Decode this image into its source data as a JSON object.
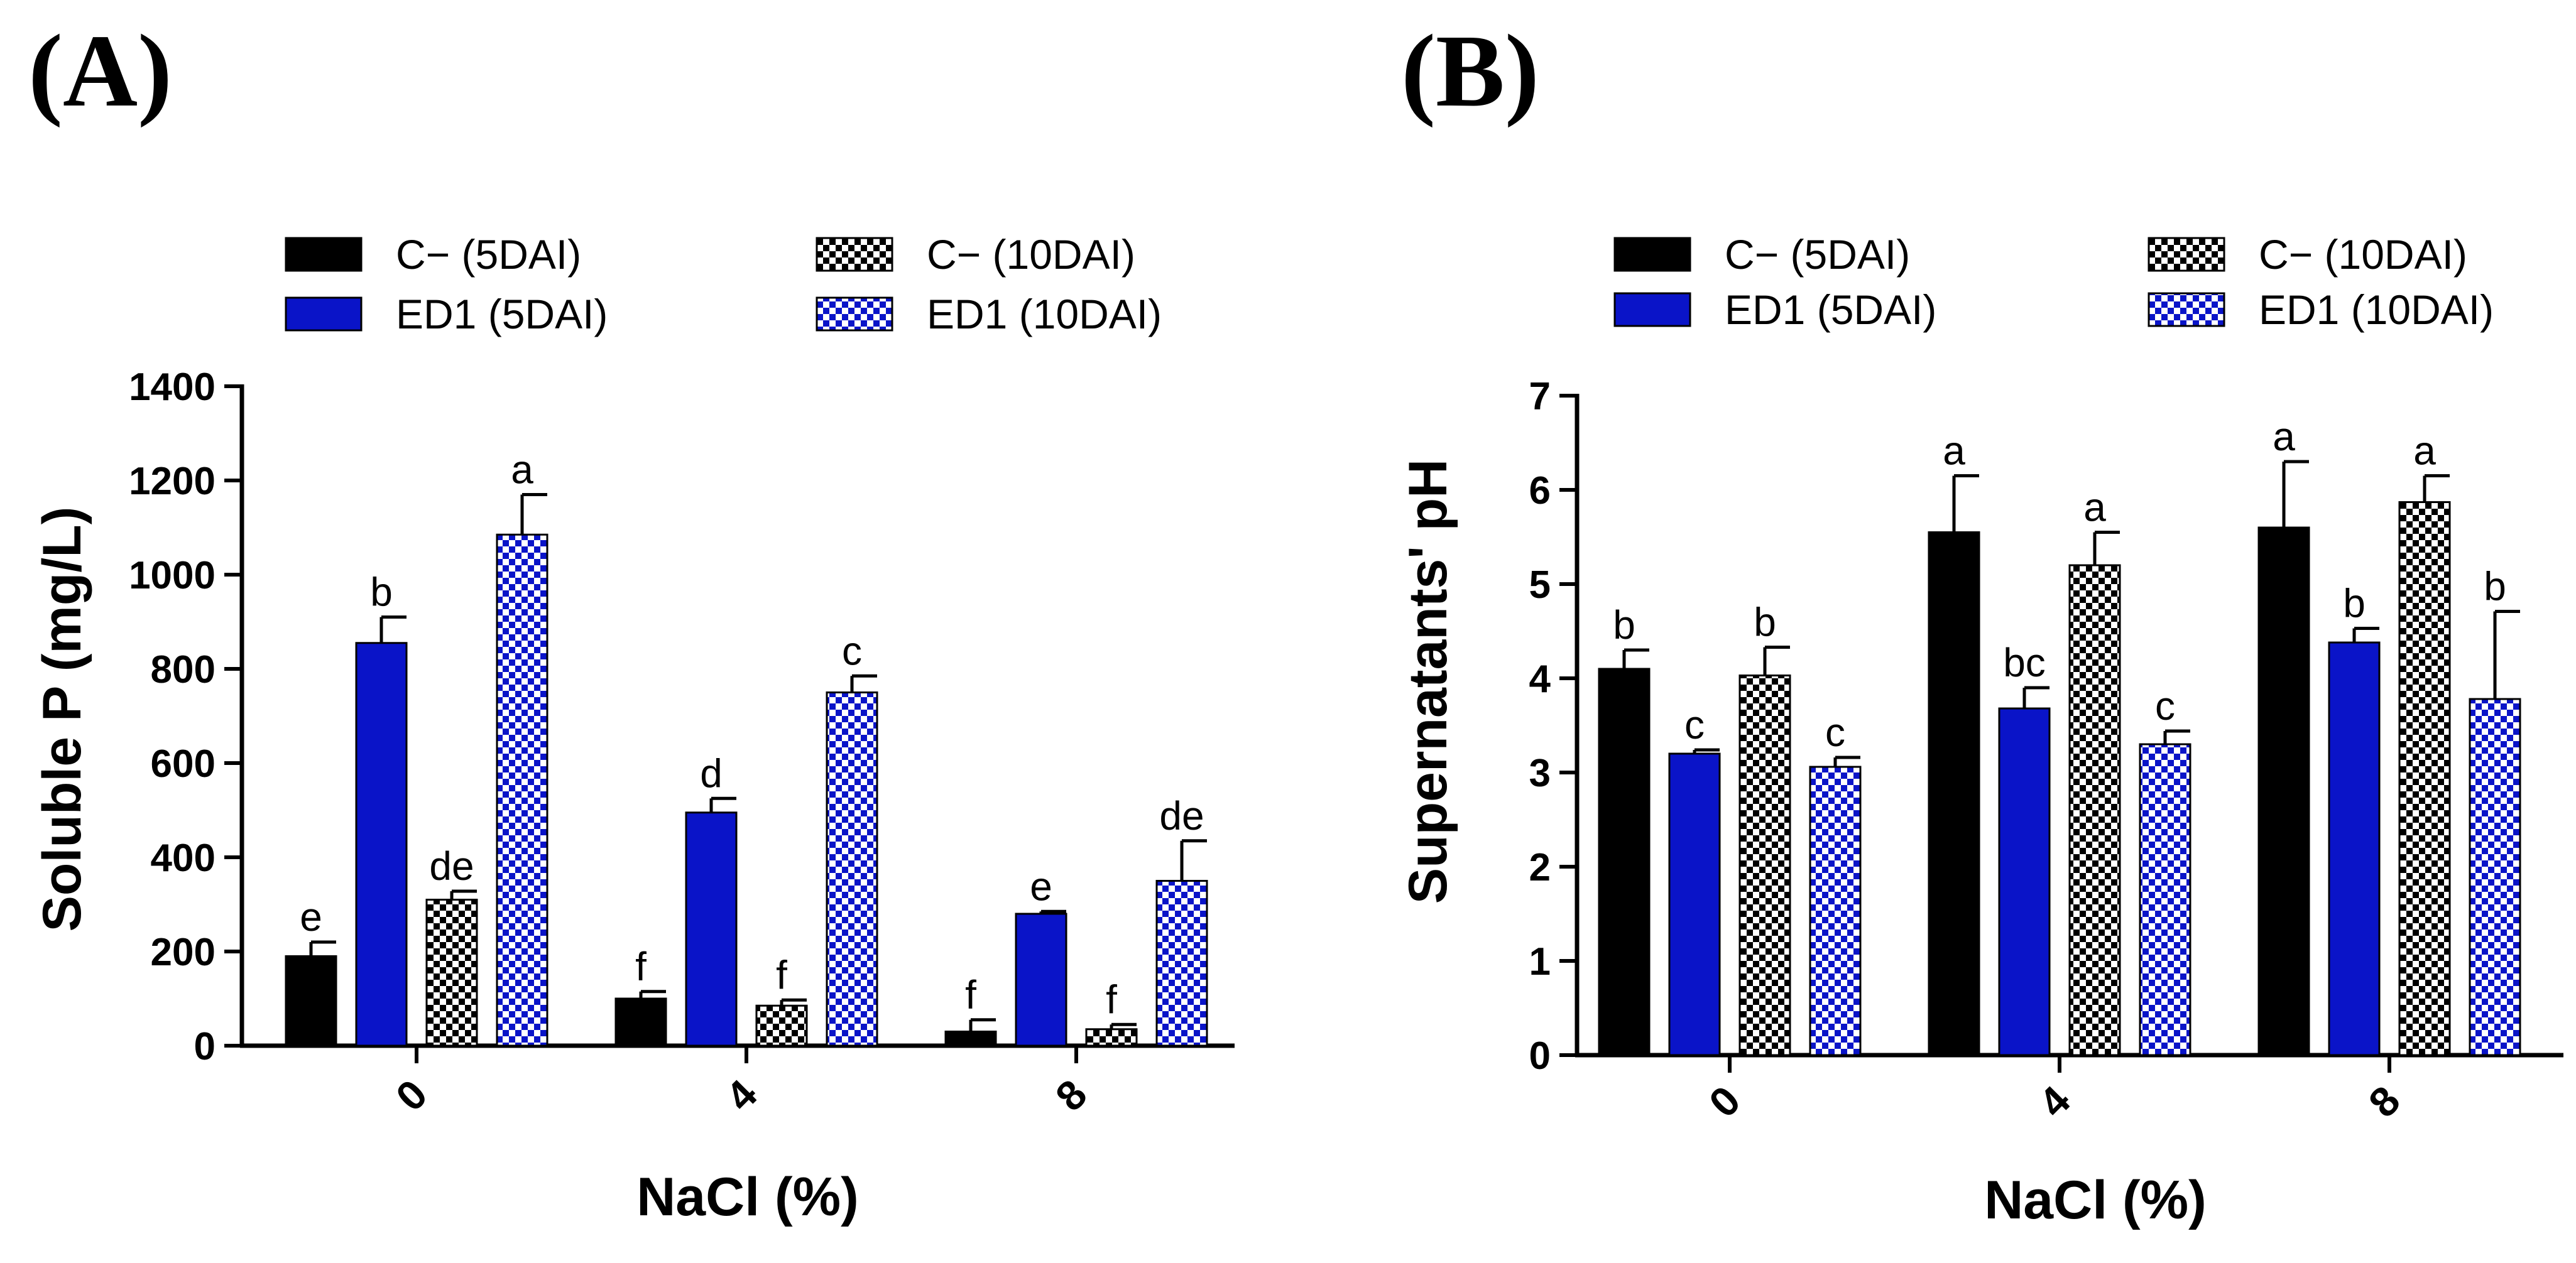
{
  "figure": {
    "colors": {
      "c_minus": "#000000",
      "ed1": "#0a14c8",
      "checker_light": "#ffffff",
      "axis": "#000000"
    },
    "legend_labels": [
      "C− (5DAI)",
      "ED1 (5DAI)",
      "C− (10DAI)",
      "ED1 (10DAI)"
    ]
  },
  "chart_data": [
    {
      "panel_label": "(A)",
      "type": "bar",
      "title": "",
      "xlabel": "NaCl (%)",
      "ylabel": "Soluble P (mg/L)",
      "categories": [
        "0",
        "4",
        "8"
      ],
      "ylim": [
        0,
        1400
      ],
      "yticks": [
        0,
        200,
        400,
        600,
        800,
        1000,
        1200,
        1400
      ],
      "ytick_labels": [
        "0",
        "200",
        "400",
        "600",
        "800",
        "1000",
        "1200",
        "1400"
      ],
      "legend_position": "top",
      "series": [
        {
          "name": "C− (5DAI)",
          "pattern": "solid",
          "color_key": "c_minus",
          "values": [
            190,
            100,
            30
          ],
          "errors": [
            30,
            15,
            25
          ],
          "labels": [
            "e",
            "f",
            "f"
          ]
        },
        {
          "name": "ED1 (5DAI)",
          "pattern": "solid",
          "color_key": "ed1",
          "values": [
            855,
            495,
            280
          ],
          "errors": [
            55,
            30,
            5
          ],
          "labels": [
            "b",
            "d",
            "e"
          ]
        },
        {
          "name": "C− (10DAI)",
          "pattern": "checker",
          "color_key": "c_minus",
          "values": [
            310,
            85,
            35
          ],
          "errors": [
            18,
            12,
            10
          ],
          "labels": [
            "de",
            "f",
            "f"
          ]
        },
        {
          "name": "ED1 (10DAI)",
          "pattern": "checker",
          "color_key": "ed1",
          "values": [
            1085,
            750,
            350
          ],
          "errors": [
            85,
            35,
            85
          ],
          "labels": [
            "a",
            "c",
            "de"
          ]
        }
      ]
    },
    {
      "panel_label": "(B)",
      "type": "bar",
      "title": "",
      "xlabel": "NaCl (%)",
      "ylabel": "Supernatants' pH",
      "categories": [
        "0",
        "4",
        "8"
      ],
      "ylim": [
        0,
        7
      ],
      "yticks": [
        0,
        1,
        2,
        3,
        4,
        5,
        6,
        7
      ],
      "ytick_labels": [
        "0",
        "1",
        "2",
        "3",
        "4",
        "5",
        "6",
        "7"
      ],
      "legend_position": "top",
      "series": [
        {
          "name": "C− (5DAI)",
          "pattern": "solid",
          "color_key": "c_minus",
          "values": [
            4.1,
            5.55,
            5.6
          ],
          "errors": [
            0.2,
            0.6,
            0.7
          ],
          "labels": [
            "b",
            "a",
            "a"
          ]
        },
        {
          "name": "ED1 (5DAI)",
          "pattern": "solid",
          "color_key": "ed1",
          "values": [
            3.2,
            3.68,
            4.38
          ],
          "errors": [
            0.04,
            0.22,
            0.15
          ],
          "labels": [
            "c",
            "bc",
            "b"
          ]
        },
        {
          "name": "C− (10DAI)",
          "pattern": "checker",
          "color_key": "c_minus",
          "values": [
            4.03,
            5.2,
            5.87
          ],
          "errors": [
            0.3,
            0.35,
            0.28
          ],
          "labels": [
            "b",
            "a",
            "a"
          ]
        },
        {
          "name": "ED1 (10DAI)",
          "pattern": "checker",
          "color_key": "ed1",
          "values": [
            3.06,
            3.3,
            3.78
          ],
          "errors": [
            0.1,
            0.14,
            0.93
          ],
          "labels": [
            "c",
            "c",
            "b"
          ]
        }
      ]
    }
  ]
}
